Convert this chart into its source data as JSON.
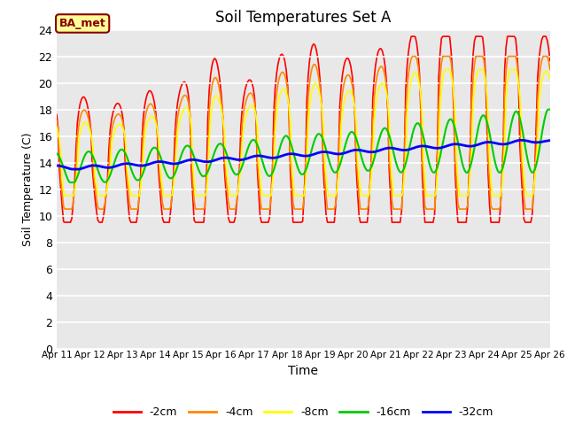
{
  "title": "Soil Temperatures Set A",
  "xlabel": "Time",
  "ylabel": "Soil Temperature (C)",
  "ylim": [
    0,
    24
  ],
  "bg_color": "#e8e8e8",
  "grid_color": "white",
  "legend_labels": [
    "-2cm",
    "-4cm",
    "-8cm",
    "-16cm",
    "-32cm"
  ],
  "legend_colors": [
    "#ff0000",
    "#ff8800",
    "#ffff00",
    "#00cc00",
    "#0000ff"
  ],
  "annotation_text": "BA_met",
  "annotation_bg": "#ffff99",
  "annotation_border": "#880000",
  "title_fontsize": 12,
  "tick_labels": [
    "Apr 11",
    "Apr 12",
    "Apr 13",
    "Apr 14",
    "Apr 15",
    "Apr 16",
    "Apr 17",
    "Apr 18",
    "Apr 19",
    "Apr 20",
    "Apr 21",
    "Apr 22",
    "Apr 23",
    "Apr 24",
    "Apr 25",
    "Apr 26"
  ]
}
